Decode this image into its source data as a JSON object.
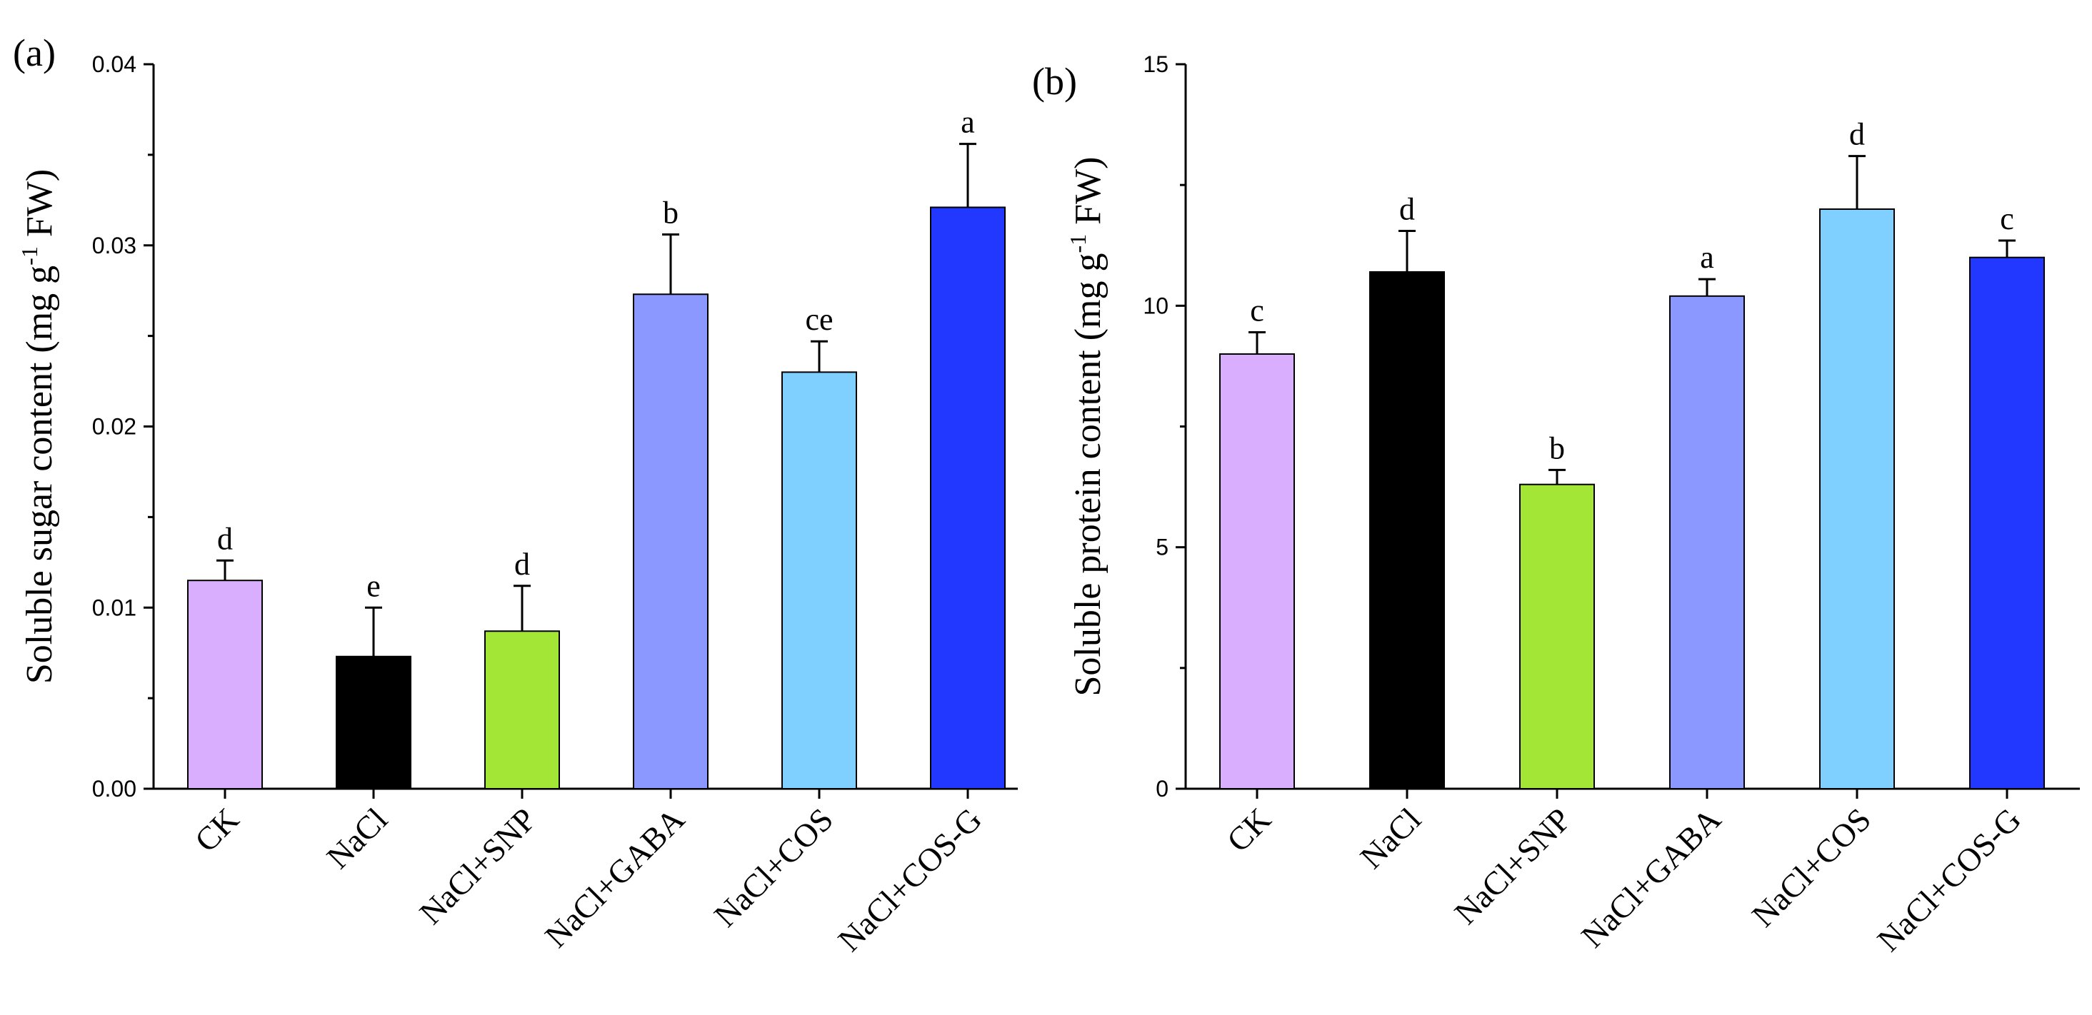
{
  "chart_data": [
    {
      "type": "bar",
      "panel_label": "(a)",
      "ylabel": "Soluble sugar content (mg g",
      "ylabel_sup": "-1",
      "ylabel_tail": " FW)",
      "categories": [
        "CK",
        "NaCl",
        "NaCl+SNP",
        "NaCl+GABA",
        "NaCl+COS",
        "NaCl+COS-G"
      ],
      "values": [
        0.0115,
        0.0073,
        0.0087,
        0.0273,
        0.023,
        0.0321
      ],
      "errors": [
        0.0011,
        0.0027,
        0.0025,
        0.0033,
        0.0017,
        0.0035
      ],
      "significance": [
        "d",
        "e",
        "d",
        "b",
        "ce",
        "a"
      ],
      "colors": [
        "#D9AEFF",
        "#000000",
        "#A3E635",
        "#8B98FF",
        "#7FD0FF",
        "#2238FF"
      ],
      "ylim": [
        0,
        0.04
      ],
      "yticks": [
        0,
        0.01,
        0.02,
        0.03,
        0.04
      ],
      "ytick_labels": [
        "0.00",
        "0.01",
        "0.02",
        "0.03",
        "0.04"
      ]
    },
    {
      "type": "bar",
      "panel_label": "(b)",
      "ylabel": "Soluble protein content (mg g",
      "ylabel_sup": "-1",
      "ylabel_tail": " FW)",
      "categories": [
        "CK",
        "NaCl",
        "NaCl+SNP",
        "NaCl+GABA",
        "NaCl+COS",
        "NaCl+COS-G"
      ],
      "values": [
        9.0,
        10.7,
        6.3,
        10.2,
        12.0,
        11.0
      ],
      "errors": [
        0.45,
        0.85,
        0.3,
        0.35,
        1.1,
        0.35
      ],
      "significance": [
        "c",
        "d",
        "b",
        "a",
        "d",
        "c"
      ],
      "colors": [
        "#D9AEFF",
        "#000000",
        "#A3E635",
        "#8B98FF",
        "#7FD0FF",
        "#2238FF"
      ],
      "ylim": [
        0,
        15
      ],
      "yticks": [
        0,
        5,
        10,
        15
      ],
      "ytick_labels": [
        "0",
        "5",
        "10",
        "15"
      ]
    }
  ]
}
